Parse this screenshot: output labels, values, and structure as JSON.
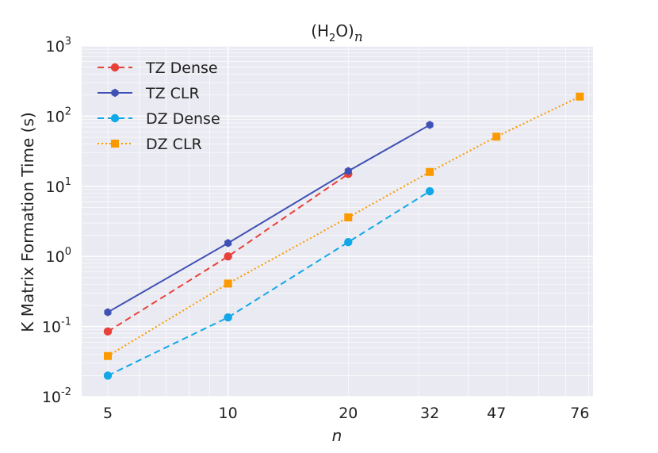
{
  "chart_data": {
    "type": "line",
    "title": "(H2O)n",
    "title_parts": {
      "base": "(H",
      "sub": "2",
      "mid": "O)",
      "var": "n"
    },
    "xlabel": "n",
    "ylabel": "K Matrix Formation Time (s)",
    "x_scale": "log",
    "y_scale": "log",
    "xlim": [
      4.3,
      82
    ],
    "ylim": [
      0.01,
      1000
    ],
    "x_ticks": [
      5,
      10,
      20,
      32,
      47,
      76
    ],
    "x_tick_labels": [
      "5",
      "10",
      "20",
      "32",
      "47",
      "76"
    ],
    "y_ticks": [
      0.01,
      0.1,
      1,
      10,
      100,
      1000
    ],
    "y_tick_labels": [
      {
        "base": "10",
        "exp": "-2"
      },
      {
        "base": "10",
        "exp": "-1"
      },
      {
        "base": "10",
        "exp": "0"
      },
      {
        "base": "10",
        "exp": "1"
      },
      {
        "base": "10",
        "exp": "2"
      },
      {
        "base": "10",
        "exp": "3"
      }
    ],
    "grid": true,
    "legend_position": "top-left",
    "series": [
      {
        "name": "TZ Dense",
        "color": "#e8413a",
        "line_style": "dashed",
        "marker": "circle",
        "x": [
          5,
          10,
          20
        ],
        "y": [
          0.085,
          1.0,
          15
        ]
      },
      {
        "name": "TZ CLR",
        "color": "#3f51b5",
        "line_style": "solid",
        "marker": "hexagon",
        "x": [
          5,
          10,
          20,
          32
        ],
        "y": [
          0.16,
          1.55,
          16.5,
          75
        ]
      },
      {
        "name": "DZ Dense",
        "color": "#12a8e8",
        "line_style": "dashed",
        "marker": "circle",
        "x": [
          5,
          10,
          20,
          32
        ],
        "y": [
          0.02,
          0.135,
          1.6,
          8.5
        ]
      },
      {
        "name": "DZ CLR",
        "color": "#fb9a00",
        "line_style": "dotted",
        "marker": "square",
        "x": [
          5,
          10,
          20,
          32,
          47,
          76
        ],
        "y": [
          0.038,
          0.41,
          3.6,
          16,
          51,
          190
        ]
      }
    ]
  }
}
